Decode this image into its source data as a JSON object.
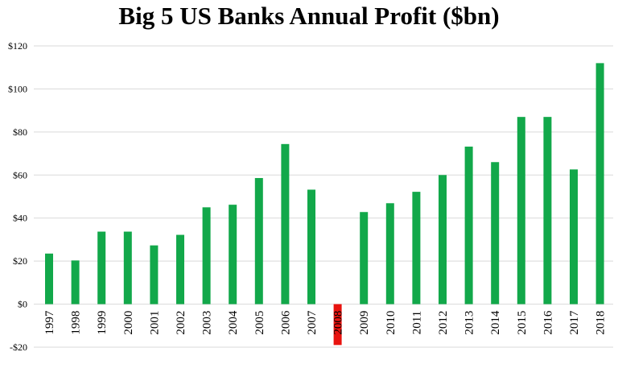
{
  "chart_data": {
    "type": "bar",
    "title": "Big 5 US Banks Annual Profit ($bn)",
    "xlabel": "",
    "ylabel": "",
    "categories": [
      "1997",
      "1998",
      "1999",
      "2000",
      "2001",
      "2002",
      "2003",
      "2004",
      "2005",
      "2006",
      "2007",
      "2008",
      "2009",
      "2010",
      "2011",
      "2012",
      "2013",
      "2014",
      "2015",
      "2016",
      "2017",
      "2018"
    ],
    "values": [
      23.5,
      20.3,
      33.7,
      33.7,
      27.3,
      32.2,
      45,
      46.2,
      58.6,
      74.4,
      53.2,
      -19,
      42.8,
      46.9,
      52.2,
      60,
      73.2,
      66,
      87,
      87,
      62.6,
      112
    ],
    "ylim": [
      -20,
      120
    ],
    "yticks": [
      -20,
      0,
      20,
      40,
      60,
      80,
      100,
      120
    ],
    "ytick_labels": [
      "-$20",
      "$0",
      "$20",
      "$40",
      "$60",
      "$80",
      "$100",
      "$120"
    ],
    "grid": true,
    "legend": "none",
    "colors": {
      "positive": "#12a84a",
      "negative": "#e8130f",
      "grid": "#d9d9d9"
    }
  }
}
